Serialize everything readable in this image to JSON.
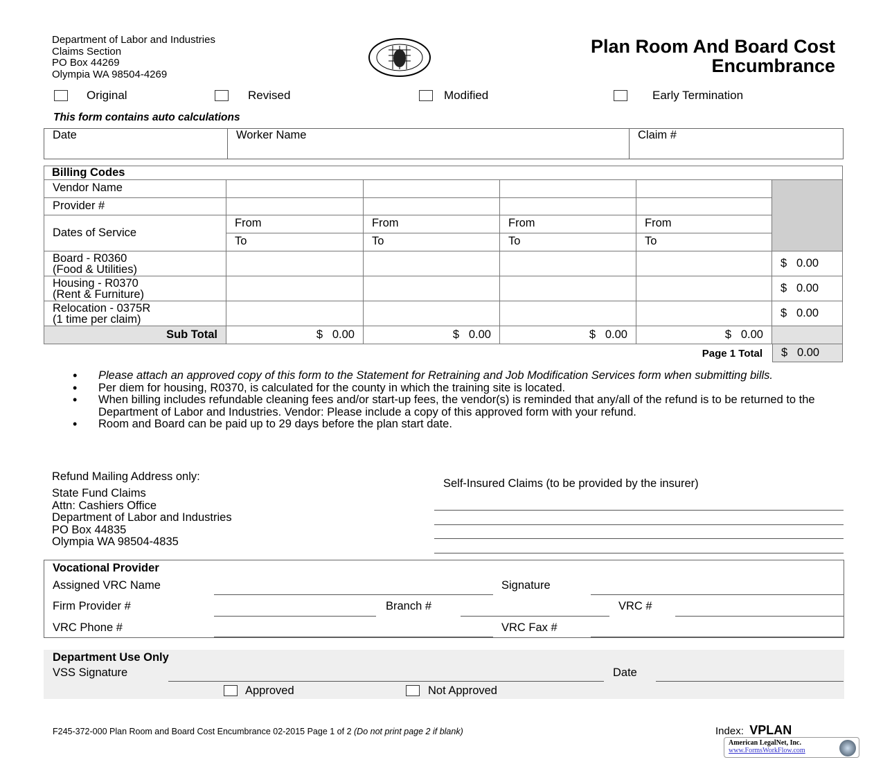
{
  "header": {
    "address": [
      "Department of Labor and Industries",
      "Claims Section",
      "PO Box 44269",
      "Olympia WA 98504-4269"
    ],
    "title_lines": [
      "Plan Room And Board Cost",
      "Encumbrance"
    ],
    "seal": "State of Washington seal"
  },
  "status_options": [
    "Original",
    "Revised",
    "Modified",
    "Early Termination"
  ],
  "auto_calc_note": "This form contains auto calculations",
  "top_fields": {
    "date": "Date",
    "worker": "Worker Name",
    "claim": "Claim #"
  },
  "billing": {
    "heading": "Billing Codes",
    "vendor": "Vendor Name",
    "provider": "Provider #",
    "dates": "Dates of Service",
    "from": "From",
    "to": "To",
    "rows": [
      {
        "l1": "Board - R0360",
        "l2": "(Food & Utilities)",
        "total": "0.00"
      },
      {
        "l1": "Housing - R0370",
        "l2": "(Rent & Furniture)",
        "total": "0.00"
      },
      {
        "l1": "Relocation - 0375R",
        "l2": "(1 time per claim)",
        "total": "0.00"
      }
    ],
    "subtotal_label": "Sub Total",
    "subtotals": [
      "0.00",
      "0.00",
      "0.00",
      "0.00"
    ],
    "currency": "$",
    "page_total_label": "Page 1 Total",
    "page_total": "0.00"
  },
  "bullets": [
    "Please attach an approved copy of this form to the Statement for Retraining and Job Modification Services form when submitting bills.",
    "Per diem for housing, R0370, is calculated for the county in which the training site is located.",
    "When billing includes refundable cleaning fees and/or start-up fees, the vendor(s) is reminded that any/all of the refund is to be returned to the Department of Labor and Industries. Vendor: Please include a copy of this approved form with your refund.",
    "Room and Board can be paid up to 29 days before the plan start date."
  ],
  "refund": {
    "heading": "Refund Mailing Address only:",
    "lines": [
      "State Fund Claims",
      "Attn:  Cashiers Office",
      "Department of Labor and Industries",
      "PO Box 44835",
      "Olympia WA  98504-4835"
    ]
  },
  "self_insured": "Self-Insured Claims (to be provided by the insurer)",
  "voc": {
    "heading": "Vocational Provider",
    "vrc_name": "Assigned VRC Name",
    "signature": "Signature",
    "firm": "Firm Provider #",
    "branch": "Branch #",
    "vrc_num": "VRC #",
    "phone": "VRC Phone #",
    "fax": "VRC Fax #"
  },
  "dept": {
    "heading": "Department Use Only",
    "vss": "VSS Signature",
    "date": "Date",
    "approved": "Approved",
    "not_approved": "Not Approved"
  },
  "footer": {
    "form_id": "F245-372-000 Plan Room and Board Cost Encumbrance 02-2015 Page 1 of 2",
    "note": "(Do not print page 2 if blank)",
    "index_label": "Index:",
    "index_value": "VPLAN",
    "logo_name": "American LegalNet, Inc.",
    "logo_url": "www.FormsWorkFlow.com"
  }
}
